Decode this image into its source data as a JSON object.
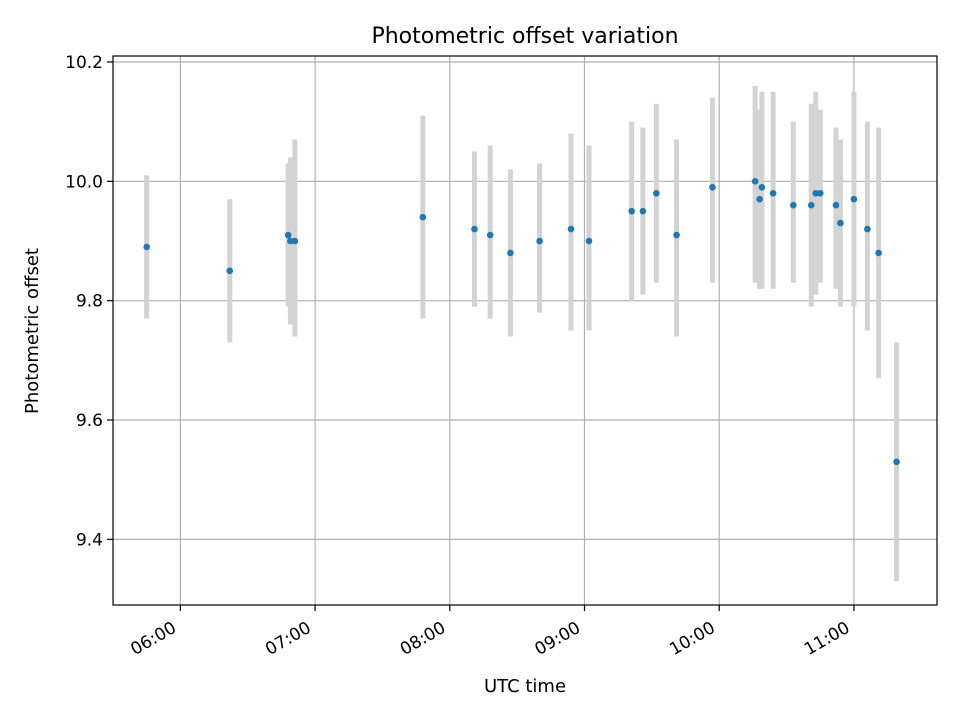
{
  "chart_data": {
    "type": "scatter",
    "title": "Photometric offset variation",
    "xlabel": "UTC time",
    "ylabel": "Photometric offset",
    "x_unit": "time of day (UTC)",
    "xlim": [
      "05:30",
      "11:37"
    ],
    "ylim": [
      9.29,
      10.21
    ],
    "x_ticks": [
      "06:00",
      "07:00",
      "08:00",
      "09:00",
      "10:00",
      "11:00"
    ],
    "y_ticks": [
      "9.4",
      "9.6",
      "9.8",
      "10.0",
      "10.2"
    ],
    "grid": true,
    "legend": "none",
    "colors": {
      "point": "#1f77b4",
      "errorbar": "#d3d3d3",
      "grid": "#b0b0b0"
    },
    "points": [
      {
        "x": "05:45",
        "y": 9.89,
        "ylo": 9.77,
        "yhi": 10.01
      },
      {
        "x": "06:22",
        "y": 9.85,
        "ylo": 9.73,
        "yhi": 9.97
      },
      {
        "x": "06:48",
        "y": 9.91,
        "ylo": 9.79,
        "yhi": 10.03
      },
      {
        "x": "06:49",
        "y": 9.9,
        "ylo": 9.76,
        "yhi": 10.04
      },
      {
        "x": "06:51",
        "y": 9.9,
        "ylo": 9.74,
        "yhi": 10.07
      },
      {
        "x": "07:48",
        "y": 9.94,
        "ylo": 9.77,
        "yhi": 10.11
      },
      {
        "x": "08:11",
        "y": 9.92,
        "ylo": 9.79,
        "yhi": 10.05
      },
      {
        "x": "08:18",
        "y": 9.91,
        "ylo": 9.77,
        "yhi": 10.06
      },
      {
        "x": "08:27",
        "y": 9.88,
        "ylo": 9.74,
        "yhi": 10.02
      },
      {
        "x": "08:40",
        "y": 9.9,
        "ylo": 9.78,
        "yhi": 10.03
      },
      {
        "x": "08:54",
        "y": 9.92,
        "ylo": 9.75,
        "yhi": 10.08
      },
      {
        "x": "09:02",
        "y": 9.9,
        "ylo": 9.75,
        "yhi": 10.06
      },
      {
        "x": "09:21",
        "y": 9.95,
        "ylo": 9.8,
        "yhi": 10.1
      },
      {
        "x": "09:26",
        "y": 9.95,
        "ylo": 9.81,
        "yhi": 10.09
      },
      {
        "x": "09:32",
        "y": 9.98,
        "ylo": 9.83,
        "yhi": 10.13
      },
      {
        "x": "09:41",
        "y": 9.91,
        "ylo": 9.74,
        "yhi": 10.07
      },
      {
        "x": "09:57",
        "y": 9.99,
        "ylo": 9.83,
        "yhi": 10.14
      },
      {
        "x": "10:16",
        "y": 10.0,
        "ylo": 9.83,
        "yhi": 10.16
      },
      {
        "x": "10:18",
        "y": 9.97,
        "ylo": 9.82,
        "yhi": 10.12
      },
      {
        "x": "10:19",
        "y": 9.99,
        "ylo": 9.82,
        "yhi": 10.15
      },
      {
        "x": "10:24",
        "y": 9.98,
        "ylo": 9.82,
        "yhi": 10.15
      },
      {
        "x": "10:33",
        "y": 9.96,
        "ylo": 9.83,
        "yhi": 10.1
      },
      {
        "x": "10:41",
        "y": 9.96,
        "ylo": 9.79,
        "yhi": 10.13
      },
      {
        "x": "10:43",
        "y": 9.98,
        "ylo": 9.81,
        "yhi": 10.15
      },
      {
        "x": "10:45",
        "y": 9.98,
        "ylo": 9.83,
        "yhi": 10.12
      },
      {
        "x": "10:52",
        "y": 9.96,
        "ylo": 9.82,
        "yhi": 10.09
      },
      {
        "x": "10:54",
        "y": 9.93,
        "ylo": 9.79,
        "yhi": 10.07
      },
      {
        "x": "11:00",
        "y": 9.97,
        "ylo": 9.79,
        "yhi": 10.15
      },
      {
        "x": "11:06",
        "y": 9.92,
        "ylo": 9.75,
        "yhi": 10.1
      },
      {
        "x": "11:11",
        "y": 9.88,
        "ylo": 9.67,
        "yhi": 10.09
      },
      {
        "x": "11:19",
        "y": 9.53,
        "ylo": 9.33,
        "yhi": 9.73
      }
    ]
  }
}
